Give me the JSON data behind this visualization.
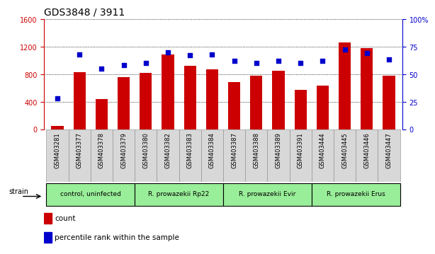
{
  "title": "GDS3848 / 3911",
  "samples": [
    "GSM403281",
    "GSM403377",
    "GSM403378",
    "GSM403379",
    "GSM403380",
    "GSM403382",
    "GSM403383",
    "GSM403384",
    "GSM403387",
    "GSM403388",
    "GSM403389",
    "GSM403391",
    "GSM403444",
    "GSM403445",
    "GSM403446",
    "GSM403447"
  ],
  "counts": [
    50,
    830,
    435,
    760,
    820,
    1080,
    920,
    870,
    680,
    780,
    850,
    570,
    630,
    1260,
    1180,
    780
  ],
  "percentiles": [
    28,
    68,
    55,
    58,
    60,
    70,
    67,
    68,
    62,
    60,
    62,
    60,
    62,
    72,
    69,
    63
  ],
  "group_data": [
    {
      "start": 0,
      "end": 3,
      "label": "control, uninfected"
    },
    {
      "start": 4,
      "end": 7,
      "label": "R. prowazekii Rp22"
    },
    {
      "start": 8,
      "end": 11,
      "label": "R. prowazekii Evir"
    },
    {
      "start": 12,
      "end": 15,
      "label": "R. prowazekii Erus"
    }
  ],
  "bar_color": "#cc0000",
  "dot_color": "#0000cc",
  "group_color": "#99ee99",
  "left_ylim": [
    0,
    1600
  ],
  "right_ylim": [
    0,
    100
  ],
  "left_yticks": [
    0,
    400,
    800,
    1200,
    1600
  ],
  "right_yticks": [
    0,
    25,
    50,
    75,
    100
  ],
  "left_tick_color": "#cc0000",
  "right_tick_color": "#0000cc",
  "strain_label": "strain",
  "legend_count": "count",
  "legend_percentile": "percentile rank within the sample",
  "title_fontsize": 10,
  "tick_fontsize": 7,
  "label_fontsize": 7
}
